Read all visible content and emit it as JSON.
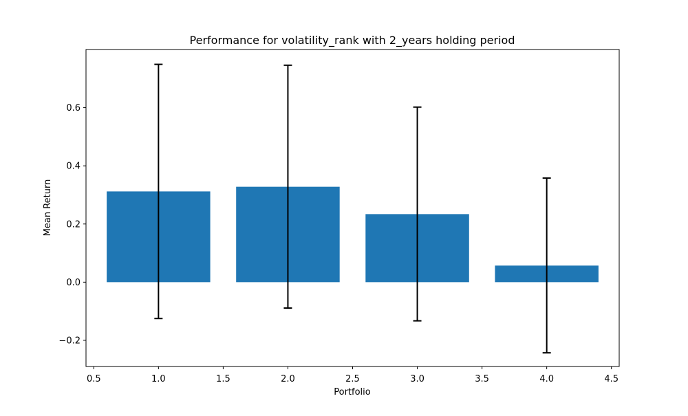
{
  "chart_data": {
    "type": "bar",
    "title": "Performance for volatility_rank with 2_years holding period",
    "xlabel": "Portfolio",
    "ylabel": "Mean Return",
    "x": [
      1,
      2,
      3,
      4
    ],
    "values": [
      0.312,
      0.328,
      0.234,
      0.057
    ],
    "error_bars": [
      {
        "lower": -0.125,
        "upper": 0.749
      },
      {
        "lower": -0.089,
        "upper": 0.746
      },
      {
        "lower": -0.133,
        "upper": 0.602
      },
      {
        "lower": -0.243,
        "upper": 0.358
      }
    ],
    "bar_width": 0.8,
    "xlim": [
      0.44,
      4.56
    ],
    "ylim": [
      -0.29,
      0.8
    ],
    "xticks": [
      0.5,
      1.0,
      1.5,
      2.0,
      2.5,
      3.0,
      3.5,
      4.0,
      4.5
    ],
    "xtick_labels": [
      "0.5",
      "1.0",
      "1.5",
      "2.0",
      "2.5",
      "3.0",
      "3.5",
      "4.0",
      "4.5"
    ],
    "yticks": [
      -0.2,
      0.0,
      0.2,
      0.4,
      0.6
    ],
    "ytick_labels": [
      "−0.2",
      "0.0",
      "0.2",
      "0.4",
      "0.6"
    ],
    "grid": false,
    "legend": "none",
    "colors": {
      "bar": "#1f77b4",
      "error_bar": "#000000",
      "axes": "#000000"
    }
  }
}
